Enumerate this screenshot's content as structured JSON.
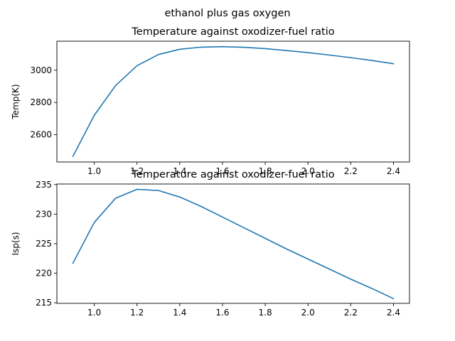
{
  "figure": {
    "suptitle": "ethanol plus gas oxygen"
  },
  "colors": {
    "line": "#1f77b4",
    "background": "#ffffff"
  },
  "chart_data": [
    {
      "type": "line",
      "title": "Temperature against oxodizer-fuel ratio",
      "xlabel": "",
      "ylabel": "Temp(K)",
      "xlim": [
        0.825,
        2.475
      ],
      "ylim": [
        2430,
        3180
      ],
      "xticks": [
        1.0,
        1.2,
        1.4,
        1.6,
        1.8,
        2.0,
        2.2,
        2.4
      ],
      "xtick_labels": [
        "1.0",
        "1.2",
        "1.4",
        "1.6",
        "1.8",
        "2.0",
        "2.2",
        "2.4"
      ],
      "yticks": [
        2600,
        2800,
        3000
      ],
      "ytick_labels": [
        "2600",
        "2800",
        "3000"
      ],
      "grid": false,
      "x": [
        0.9,
        1.0,
        1.1,
        1.2,
        1.3,
        1.4,
        1.5,
        1.6,
        1.7,
        1.8,
        1.9,
        2.0,
        2.1,
        2.2,
        2.3,
        2.4
      ],
      "series": [
        {
          "values": [
            2465,
            2720,
            2905,
            3028,
            3097,
            3130,
            3143,
            3146,
            3142,
            3134,
            3122,
            3109,
            3094,
            3078,
            3060,
            3040
          ]
        }
      ]
    },
    {
      "type": "line",
      "title": "Temperature against oxodizer-fuel ratio",
      "xlabel": "",
      "ylabel": "Isp(s)",
      "xlim": [
        0.825,
        2.475
      ],
      "ylim": [
        214.9,
        235.1
      ],
      "xticks": [
        1.0,
        1.2,
        1.4,
        1.6,
        1.8,
        2.0,
        2.2,
        2.4
      ],
      "xtick_labels": [
        "1.0",
        "1.2",
        "1.4",
        "1.6",
        "1.8",
        "2.0",
        "2.2",
        "2.4"
      ],
      "yticks": [
        215,
        220,
        225,
        230,
        235
      ],
      "ytick_labels": [
        "215",
        "220",
        "225",
        "230",
        "235"
      ],
      "grid": false,
      "x": [
        0.9,
        1.0,
        1.1,
        1.2,
        1.3,
        1.4,
        1.5,
        1.6,
        1.7,
        1.8,
        1.9,
        2.0,
        2.1,
        2.2,
        2.3,
        2.4
      ],
      "series": [
        {
          "values": [
            221.7,
            228.6,
            232.7,
            234.2,
            234.0,
            232.9,
            231.3,
            229.5,
            227.7,
            225.9,
            224.1,
            222.4,
            220.7,
            219.0,
            217.4,
            215.7
          ]
        }
      ]
    }
  ]
}
